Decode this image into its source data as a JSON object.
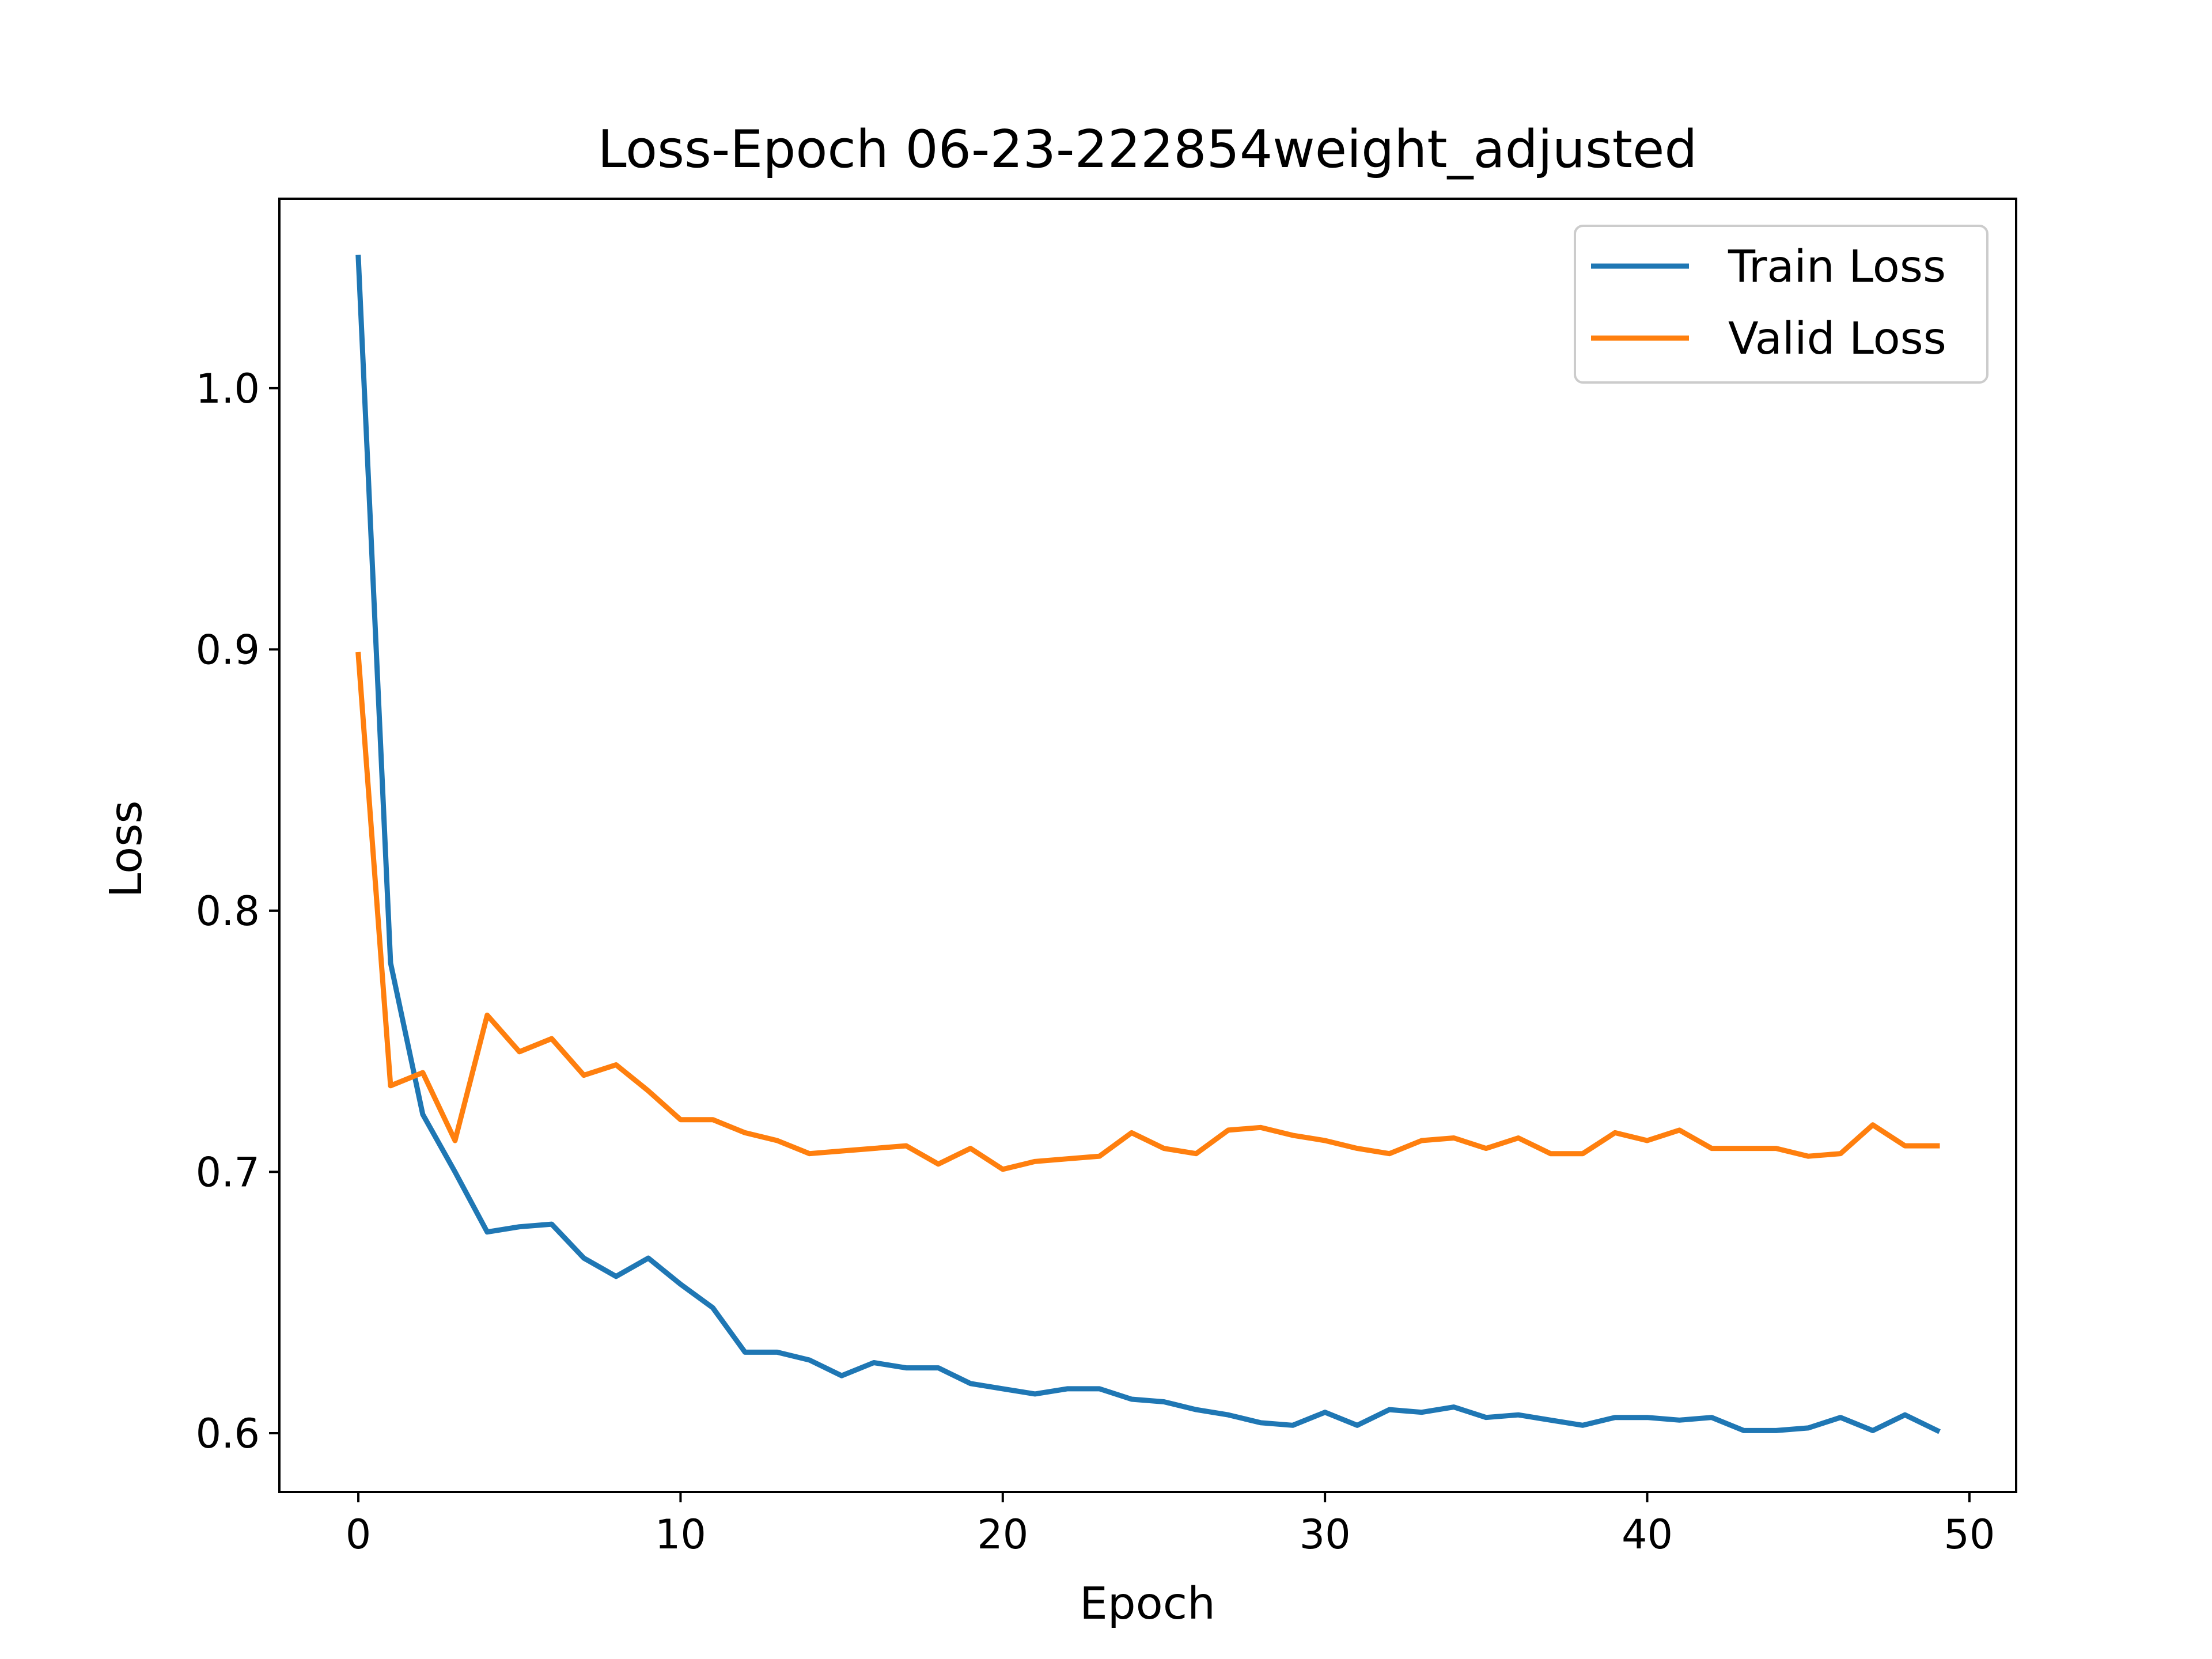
{
  "chart_data": {
    "type": "line",
    "title": "Loss-Epoch 06-23-222854weight_adjusted",
    "xlabel": "Epoch",
    "ylabel": "Loss",
    "xlim": [
      -2.45,
      51.45
    ],
    "ylim": [
      0.5775,
      1.0725
    ],
    "xticks": [
      0,
      10,
      20,
      30,
      40,
      50
    ],
    "yticks": [
      0.6,
      0.7,
      0.8,
      0.9,
      1.0
    ],
    "xtick_labels": [
      "0",
      "10",
      "20",
      "30",
      "40",
      "50"
    ],
    "ytick_labels": [
      "0.6",
      "0.7",
      "0.8",
      "0.9",
      "1.0"
    ],
    "grid": false,
    "legend_position": "upper right",
    "x": [
      0,
      1,
      2,
      3,
      4,
      5,
      6,
      7,
      8,
      9,
      10,
      11,
      12,
      13,
      14,
      15,
      16,
      17,
      18,
      19,
      20,
      21,
      22,
      23,
      24,
      25,
      26,
      27,
      28,
      29,
      30,
      31,
      32,
      33,
      34,
      35,
      36,
      37,
      38,
      39,
      40,
      41,
      42,
      43,
      44,
      45,
      46,
      47,
      48,
      49
    ],
    "series": [
      {
        "name": "Train Loss",
        "color": "#1f77b4",
        "values": [
          1.05,
          0.78,
          0.722,
          0.7,
          0.677,
          0.679,
          0.68,
          0.667,
          0.66,
          0.667,
          0.657,
          0.648,
          0.631,
          0.631,
          0.628,
          0.622,
          0.627,
          0.625,
          0.625,
          0.619,
          0.617,
          0.615,
          0.617,
          0.617,
          0.613,
          0.612,
          0.609,
          0.607,
          0.604,
          0.603,
          0.608,
          0.603,
          0.609,
          0.608,
          0.61,
          0.606,
          0.607,
          0.605,
          0.603,
          0.606,
          0.606,
          0.605,
          0.606,
          0.601,
          0.601,
          0.602,
          0.606,
          0.601,
          0.607,
          0.601
        ]
      },
      {
        "name": "Valid Loss",
        "color": "#ff7f0e",
        "values": [
          0.898,
          0.733,
          0.738,
          0.712,
          0.76,
          0.746,
          0.751,
          0.737,
          0.741,
          0.731,
          0.72,
          0.72,
          0.715,
          0.712,
          0.707,
          0.708,
          0.709,
          0.71,
          0.703,
          0.709,
          0.701,
          0.704,
          0.705,
          0.706,
          0.715,
          0.709,
          0.707,
          0.716,
          0.717,
          0.714,
          0.712,
          0.709,
          0.707,
          0.712,
          0.713,
          0.709,
          0.713,
          0.707,
          0.707,
          0.715,
          0.712,
          0.716,
          0.709,
          0.709,
          0.709,
          0.706,
          0.707,
          0.718,
          0.71,
          0.71
        ]
      }
    ]
  }
}
